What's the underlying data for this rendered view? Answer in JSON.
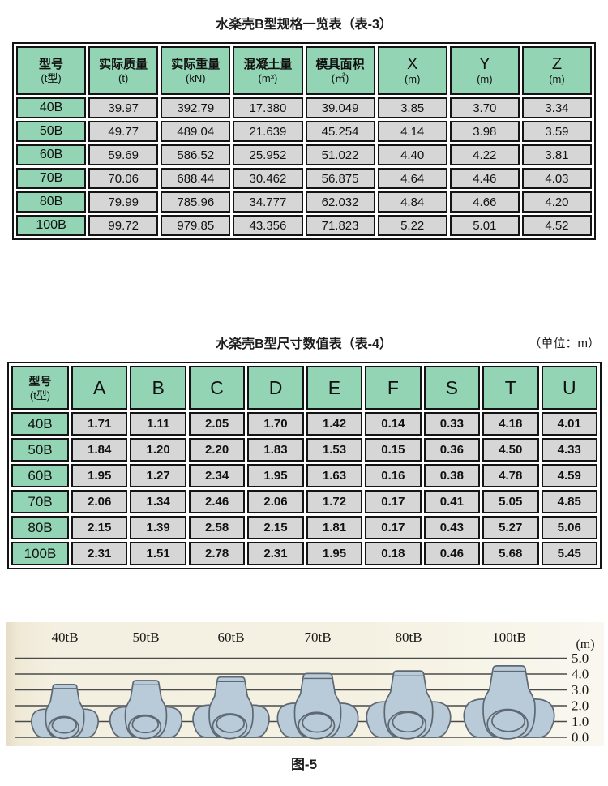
{
  "table1": {
    "title": "水楽壳B型规格一览表（表-3）",
    "columns": [
      {
        "label": "型号",
        "unit": "(t型)"
      },
      {
        "label": "实际质量",
        "unit": "(t)"
      },
      {
        "label": "实际重量",
        "unit": "(kN)"
      },
      {
        "label": "混凝土量",
        "unit": "(m³)"
      },
      {
        "label": "模具面积",
        "unit": "(㎡)"
      },
      {
        "label": "X",
        "unit": "(m)"
      },
      {
        "label": "Y",
        "unit": "(m)"
      },
      {
        "label": "Z",
        "unit": "(m)"
      }
    ],
    "rows": [
      {
        "model": "40B",
        "values": [
          "39.97",
          "392.79",
          "17.380",
          "39.049",
          "3.85",
          "3.70",
          "3.34"
        ]
      },
      {
        "model": "50B",
        "values": [
          "49.77",
          "489.04",
          "21.639",
          "45.254",
          "4.14",
          "3.98",
          "3.59"
        ]
      },
      {
        "model": "60B",
        "values": [
          "59.69",
          "586.52",
          "25.952",
          "51.022",
          "4.40",
          "4.22",
          "3.81"
        ]
      },
      {
        "model": "70B",
        "values": [
          "70.06",
          "688.44",
          "30.462",
          "56.875",
          "4.64",
          "4.46",
          "4.03"
        ]
      },
      {
        "model": "80B",
        "values": [
          "79.99",
          "785.96",
          "34.777",
          "62.032",
          "4.84",
          "4.66",
          "4.20"
        ]
      },
      {
        "model": "100B",
        "values": [
          "99.72",
          "979.85",
          "43.356",
          "71.823",
          "5.22",
          "5.01",
          "4.52"
        ]
      }
    ]
  },
  "table2": {
    "title": "水楽壳B型尺寸数值表（表-4）",
    "unit_note": "（单位：m）",
    "columns": [
      {
        "label": "型号",
        "unit": "(t型)"
      },
      {
        "label": "A"
      },
      {
        "label": "B"
      },
      {
        "label": "C"
      },
      {
        "label": "D"
      },
      {
        "label": "E"
      },
      {
        "label": "F"
      },
      {
        "label": "S"
      },
      {
        "label": "T"
      },
      {
        "label": "U"
      }
    ],
    "rows": [
      {
        "model": "40B",
        "values": [
          "1.71",
          "1.11",
          "2.05",
          "1.70",
          "1.42",
          "0.14",
          "0.33",
          "4.18",
          "4.01"
        ]
      },
      {
        "model": "50B",
        "values": [
          "1.84",
          "1.20",
          "2.20",
          "1.83",
          "1.53",
          "0.15",
          "0.36",
          "4.50",
          "4.33"
        ]
      },
      {
        "model": "60B",
        "values": [
          "1.95",
          "1.27",
          "2.34",
          "1.95",
          "1.63",
          "0.16",
          "0.38",
          "4.78",
          "4.59"
        ]
      },
      {
        "model": "70B",
        "values": [
          "2.06",
          "1.34",
          "2.46",
          "2.06",
          "1.72",
          "0.17",
          "0.41",
          "5.05",
          "4.85"
        ]
      },
      {
        "model": "80B",
        "values": [
          "2.15",
          "1.39",
          "2.58",
          "2.15",
          "1.81",
          "0.17",
          "0.43",
          "5.27",
          "5.06"
        ]
      },
      {
        "model": "100B",
        "values": [
          "2.31",
          "1.51",
          "2.78",
          "2.31",
          "1.95",
          "0.18",
          "0.46",
          "5.68",
          "5.45"
        ]
      }
    ]
  },
  "figure": {
    "caption": "图-5",
    "axis_unit_label": "(m)",
    "scale_ticks": [
      "5.0",
      "4.0",
      "3.0",
      "2.0",
      "1.0",
      "0.0"
    ],
    "blocks": [
      {
        "label": "40tB",
        "top_height_m": 3.34
      },
      {
        "label": "50tB",
        "top_height_m": 3.59
      },
      {
        "label": "60tB",
        "top_height_m": 3.81
      },
      {
        "label": "70tB",
        "top_height_m": 4.03
      },
      {
        "label": "80tB",
        "top_height_m": 4.2
      },
      {
        "label": "100tB",
        "top_height_m": 4.52
      }
    ]
  },
  "colors": {
    "header_green": "#92d4b4",
    "cell_gray": "#d6d6d6",
    "table_border": "#141414",
    "figure_bg_cream": "#f5f1e2",
    "block_fill": "#b9cbd8",
    "block_outline": "#5d6872",
    "gridline": "#4a4a4a"
  }
}
